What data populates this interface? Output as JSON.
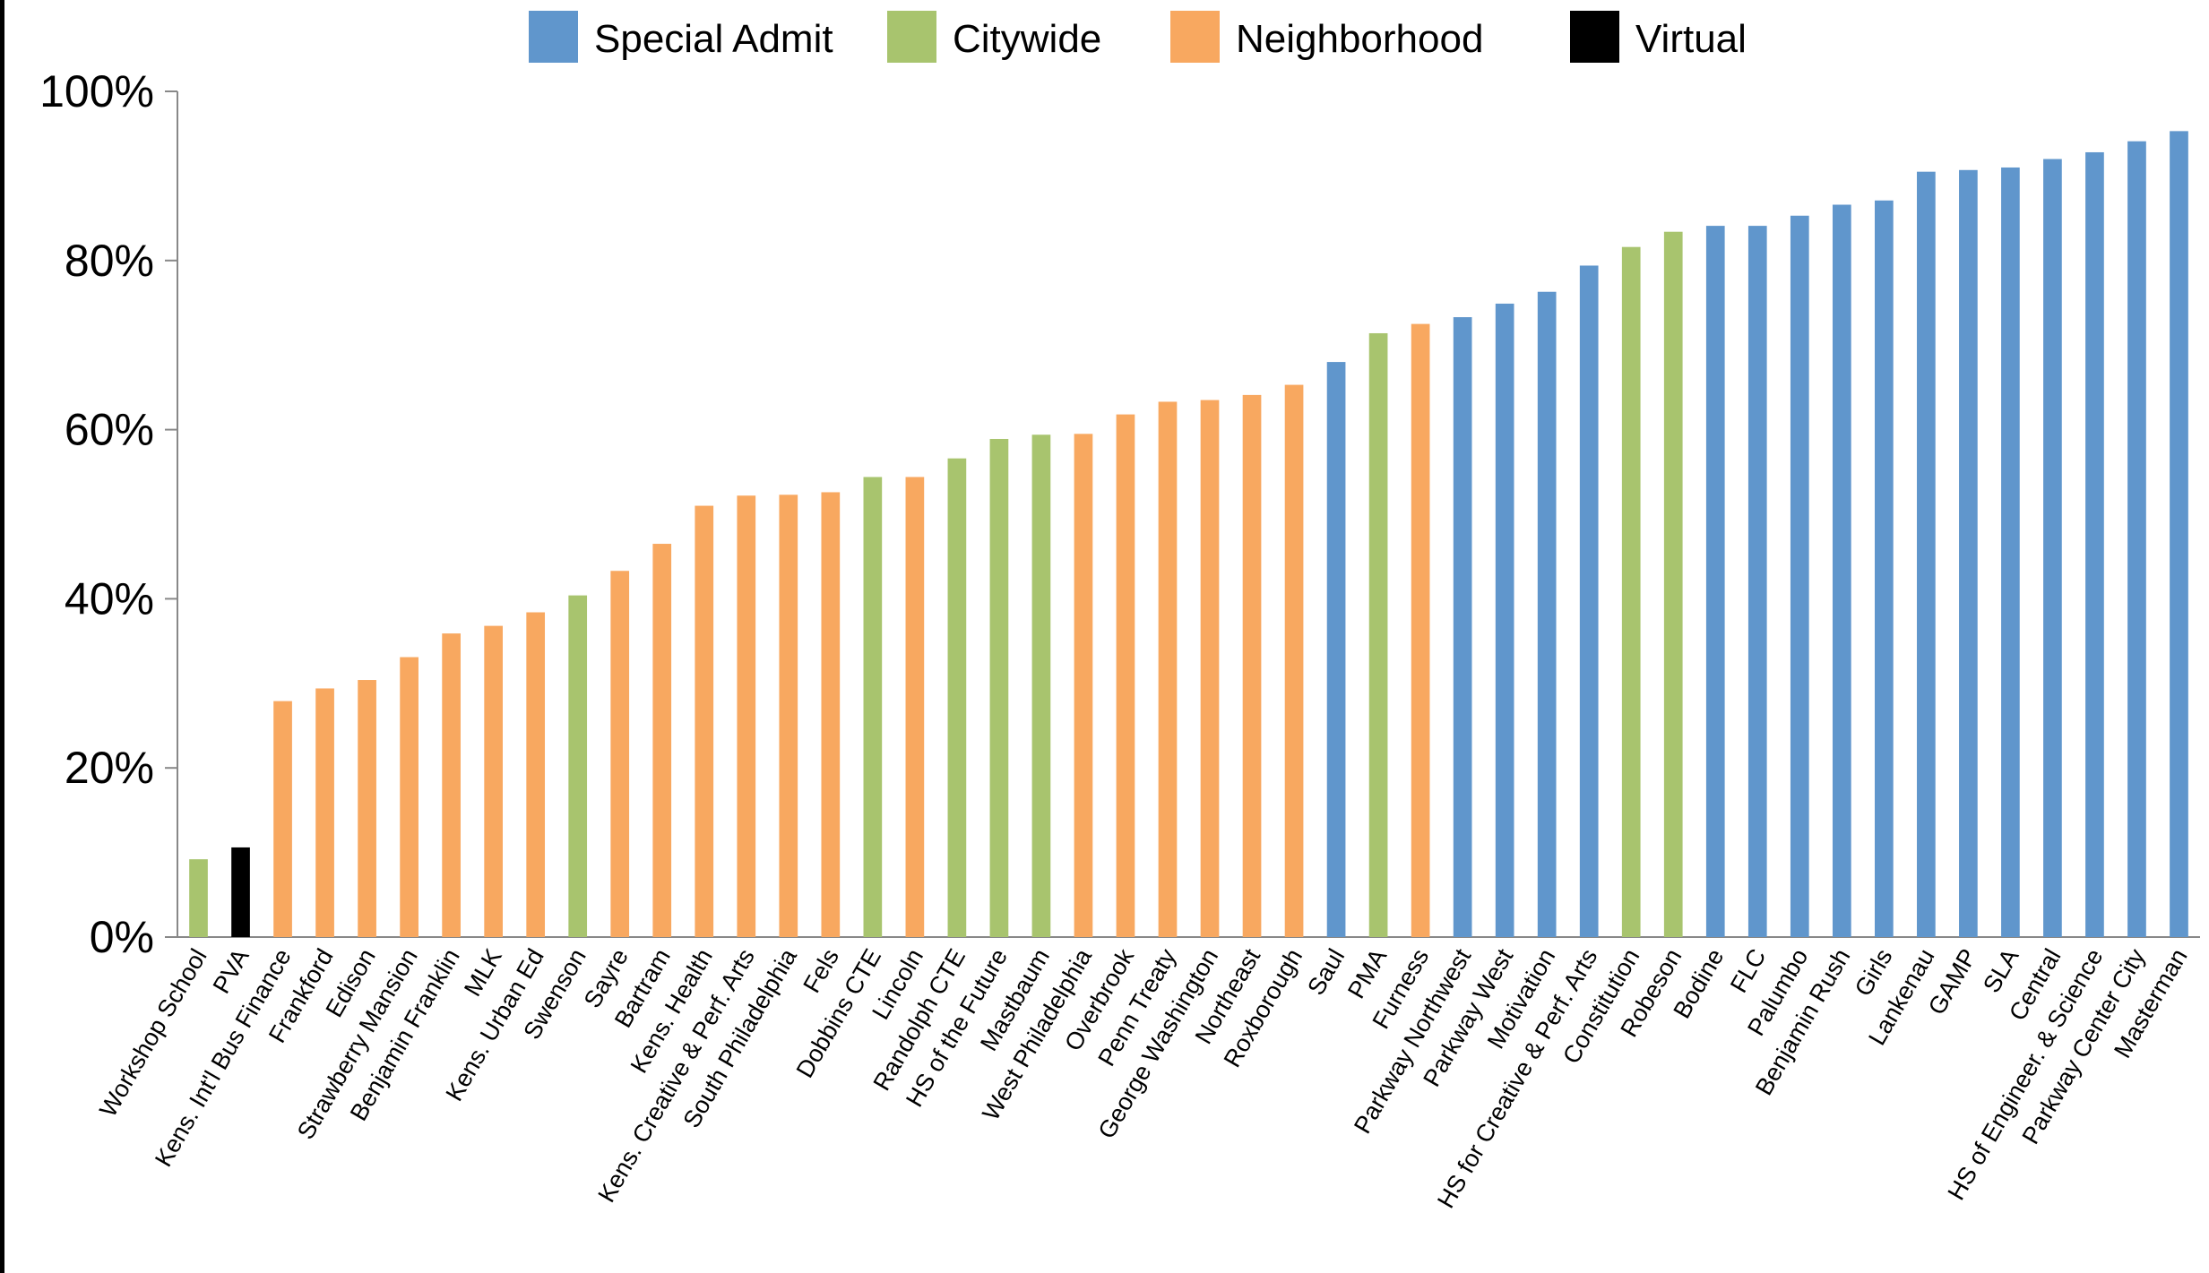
{
  "chart_data": {
    "type": "bar",
    "title": "",
    "xlabel": "",
    "ylabel": "",
    "ylim": [
      0,
      100
    ],
    "y_ticks": [
      "0%",
      "20%",
      "40%",
      "60%",
      "80%",
      "100%"
    ],
    "y_tick_values": [
      0,
      20,
      40,
      60,
      80,
      100
    ],
    "grid": false,
    "legend_position": "top",
    "legend": [
      {
        "key": "special",
        "label": "Special Admit",
        "color": "#6096CC"
      },
      {
        "key": "citywide",
        "label": "Citywide",
        "color": "#A8C46E"
      },
      {
        "key": "neighborhood",
        "label": "Neighborhood",
        "color": "#F8A860"
      },
      {
        "key": "virtual",
        "label": "Virtual",
        "color": "#000000"
      }
    ],
    "categories": [
      "Workshop School",
      "PVA",
      "Kens. Int'l Bus Finance",
      "Frankford",
      "Edison",
      "Strawberry Mansion",
      "Benjamin Franklin",
      "MLK",
      "Kens. Urban Ed",
      "Swenson",
      "Sayre",
      "Bartram",
      "Kens. Health",
      "Kens. Creative & Perf. Arts",
      "South Philadelphia",
      "Fels",
      "Dobbins CTE",
      "Lincoln",
      "Randolph CTE",
      "HS of the Future",
      "Mastbaum",
      "West Philadelphia",
      "Overbrook",
      "Penn Treaty",
      "George Washington",
      "Northeast",
      "Roxborough",
      "Saul",
      "PMA",
      "Furness",
      "Parkway Northwest",
      "Parkway West",
      "Motivation",
      "HS for Creative & Perf. Arts",
      "Constitution",
      "Robeson",
      "Bodine",
      "FLC",
      "Palumbo",
      "Benjamin Rush",
      "Girls",
      "Lankenau",
      "GAMP",
      "SLA",
      "Central",
      "HS of Engineer. & Science",
      "Parkway  Center City",
      "Masterman"
    ],
    "values": [
      9.2,
      10.6,
      27.9,
      29.4,
      30.4,
      33.1,
      35.9,
      36.8,
      38.4,
      40.4,
      43.3,
      46.5,
      51.0,
      52.2,
      52.3,
      52.6,
      54.4,
      54.4,
      56.6,
      58.9,
      59.4,
      59.5,
      61.8,
      63.3,
      63.5,
      64.1,
      65.3,
      68.0,
      71.4,
      72.5,
      73.3,
      74.9,
      76.3,
      79.4,
      81.6,
      83.4,
      84.1,
      84.1,
      85.3,
      86.6,
      87.1,
      90.5,
      90.7,
      91.0,
      92.0,
      92.8,
      94.1,
      95.3
    ],
    "groups": [
      "citywide",
      "virtual",
      "neighborhood",
      "neighborhood",
      "neighborhood",
      "neighborhood",
      "neighborhood",
      "neighborhood",
      "neighborhood",
      "citywide",
      "neighborhood",
      "neighborhood",
      "neighborhood",
      "neighborhood",
      "neighborhood",
      "neighborhood",
      "citywide",
      "neighborhood",
      "citywide",
      "citywide",
      "citywide",
      "neighborhood",
      "neighborhood",
      "neighborhood",
      "neighborhood",
      "neighborhood",
      "neighborhood",
      "special",
      "citywide",
      "neighborhood",
      "special",
      "special",
      "special",
      "special",
      "citywide",
      "citywide",
      "special",
      "special",
      "special",
      "special",
      "special",
      "special",
      "special",
      "special",
      "special",
      "special",
      "special",
      "special"
    ]
  }
}
